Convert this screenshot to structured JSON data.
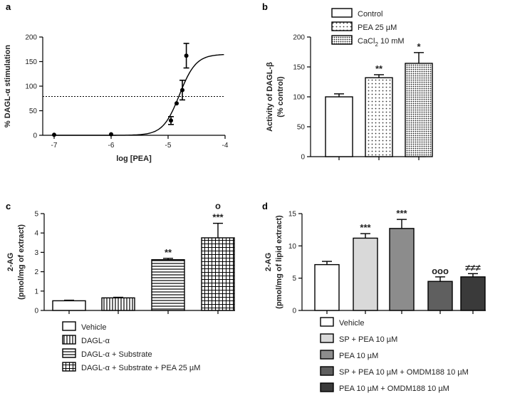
{
  "colors": {
    "ink": "#000000",
    "white": "#ffffff",
    "light_gray": "#d9d9d9",
    "mid_gray": "#8c8c8c",
    "dark_gray": "#5f5f5f",
    "darker_gray": "#3a3a3a"
  },
  "chart_data": [
    {
      "panel": "a",
      "type": "scatter",
      "title": "",
      "xlabel": "log [PEA]",
      "ylabel": "% DAGL-α stimulation",
      "xlim": [
        -7.2,
        -4
      ],
      "ylim": [
        0,
        200
      ],
      "xticks": [
        "-7",
        "-6",
        "-5",
        "-4"
      ],
      "yticks": [
        "0",
        "50",
        "100",
        "150",
        "200"
      ],
      "points": [
        {
          "x": -7.0,
          "y": 1,
          "err": 0
        },
        {
          "x": -6.0,
          "y": 2,
          "err": 0
        },
        {
          "x": -4.95,
          "y": 30,
          "err": 8
        },
        {
          "x": -4.85,
          "y": 65,
          "err": 0
        },
        {
          "x": -4.75,
          "y": 92,
          "err": 20
        },
        {
          "x": -4.68,
          "y": 162,
          "err": 25
        }
      ],
      "fit_curve": {
        "bottom": 0,
        "top": 165,
        "log_ec50": -4.8,
        "hill": 3
      },
      "reference_line_y": 79
    },
    {
      "panel": "b",
      "type": "bar",
      "ylabel": "Activity of DAGL-β (% control)",
      "ylim": [
        0,
        200
      ],
      "yticks": [
        "0",
        "50",
        "100",
        "150",
        "200"
      ],
      "categories": [
        "Control",
        "PEA 25 µM",
        "CaCl₂ 10 mM"
      ],
      "values": [
        100,
        132,
        156
      ],
      "errors": [
        5,
        5,
        18
      ],
      "significance": [
        "",
        "**",
        "*"
      ],
      "legend": [
        "Control",
        "PEA 25 µM",
        "CaCl",
        "2",
        " 10 mM"
      ],
      "legend_entries": [
        {
          "label": "Control"
        },
        {
          "label": "PEA 25 µM"
        },
        {
          "label": "CaCl",
          "sub": "2",
          "rest": " 10 mM"
        }
      ]
    },
    {
      "panel": "c",
      "type": "bar",
      "ylabel": "2-AG (pmol/mg of extract)",
      "ylim": [
        0,
        5
      ],
      "yticks": [
        "0",
        "1",
        "2",
        "3",
        "4",
        "5"
      ],
      "categories": [
        "Vehicle",
        "DAGL-α",
        "DAGL-α + Substrate",
        "DAGL-α + Substrate + PEA 25 µM"
      ],
      "values": [
        0.5,
        0.65,
        2.62,
        3.75
      ],
      "errors": [
        0.03,
        0.03,
        0.07,
        0.75
      ],
      "significance": [
        "",
        "",
        "**",
        "***"
      ],
      "extra_marks": [
        "",
        "",
        "",
        "o"
      ]
    },
    {
      "panel": "d",
      "type": "bar",
      "ylabel": "2-AG (pmol/mg of lipid extract)",
      "ylim": [
        0,
        15
      ],
      "yticks": [
        "0",
        "5",
        "10",
        "15"
      ],
      "categories": [
        "Vehicle",
        "SP + PEA 10 µM",
        "PEA 10 µM",
        "SP + PEA 10 µM + OMDM188 10 µM",
        "PEA 10 µM + OMDM188 10 µM"
      ],
      "values": [
        7.1,
        11.2,
        12.7,
        4.5,
        5.2
      ],
      "errors": [
        0.5,
        0.7,
        1.4,
        0.7,
        0.5
      ],
      "significance": [
        "",
        "***",
        "***",
        "ooo",
        "≠≠≠"
      ]
    }
  ],
  "panel_labels": [
    "a",
    "b",
    "c",
    "d"
  ]
}
